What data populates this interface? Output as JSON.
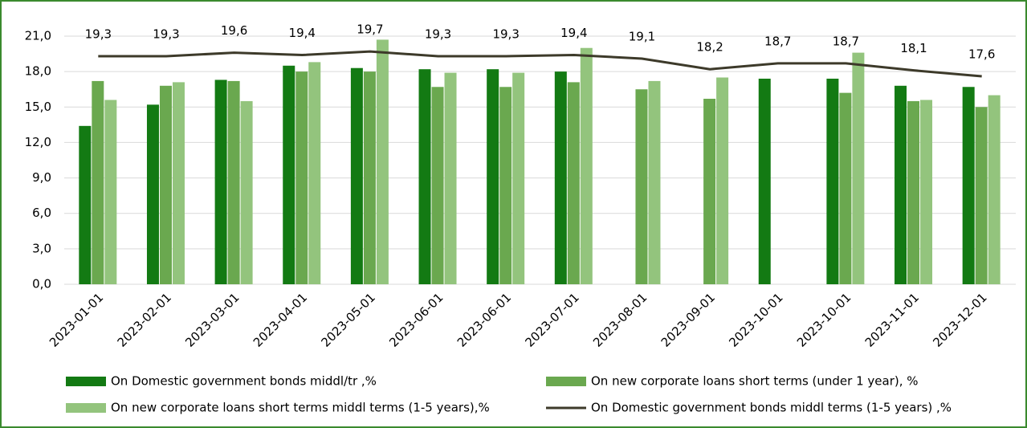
{
  "chart_data": {
    "type": "bar-line",
    "categories": [
      "2023-01-01",
      "2023-02-01",
      "2023-03-01",
      "2023-04-01",
      "2023-05-01",
      "2023-06-01",
      "2023-06-01",
      "2023-07-01",
      "2023-08-01",
      "2023-09-01",
      "2023-10-01",
      "2023-10-01",
      "2023-11-01",
      "2023-12-01"
    ],
    "series": [
      {
        "name": "On Domestic government bonds middl/tr ,%",
        "type": "bar",
        "color": "#137a13",
        "values": [
          13.4,
          15.2,
          17.3,
          18.5,
          18.3,
          18.2,
          18.2,
          18.0,
          null,
          null,
          17.4,
          17.4,
          16.8,
          16.7
        ]
      },
      {
        "name": "On new corporate loans short terms (under 1 year), %",
        "type": "bar",
        "color": "#6aa84f",
        "values": [
          17.2,
          16.8,
          17.2,
          18.0,
          18.0,
          16.7,
          16.7,
          17.1,
          16.5,
          15.7,
          null,
          16.2,
          15.5,
          15.0
        ]
      },
      {
        "name": "On new corporate loans short terms middl terms (1-5 years),%",
        "type": "bar",
        "color": "#93c47d",
        "values": [
          15.6,
          17.1,
          15.5,
          18.8,
          20.7,
          17.9,
          17.9,
          20.0,
          17.2,
          17.5,
          null,
          19.6,
          15.6,
          16.0
        ]
      },
      {
        "name": "On Domestic government bonds middl terms (1-5 years) ,%",
        "type": "line",
        "color": "#3d3a2a",
        "values": [
          19.3,
          19.3,
          19.6,
          19.4,
          19.7,
          19.3,
          19.3,
          19.4,
          19.1,
          18.2,
          18.7,
          18.7,
          18.1,
          17.6
        ],
        "value_labels": [
          "19,3",
          "19,3",
          "19,6",
          "19,4",
          "19,7",
          "19,3",
          "19,3",
          "19,4",
          "19,1",
          "18,2",
          "18,7",
          "18,7",
          "18,1",
          "17,6"
        ]
      }
    ],
    "ylim": [
      0,
      21
    ],
    "yticks": [
      {
        "value": 0,
        "label": "0,0"
      },
      {
        "value": 3,
        "label": "3,0"
      },
      {
        "value": 6,
        "label": "6,0"
      },
      {
        "value": 9,
        "label": "9,0"
      },
      {
        "value": 12,
        "label": "12,0"
      },
      {
        "value": 15,
        "label": "15,0"
      },
      {
        "value": 18,
        "label": "18,0"
      },
      {
        "value": 21,
        "label": "21,0"
      }
    ],
    "grid": true,
    "legend": "bottom"
  }
}
